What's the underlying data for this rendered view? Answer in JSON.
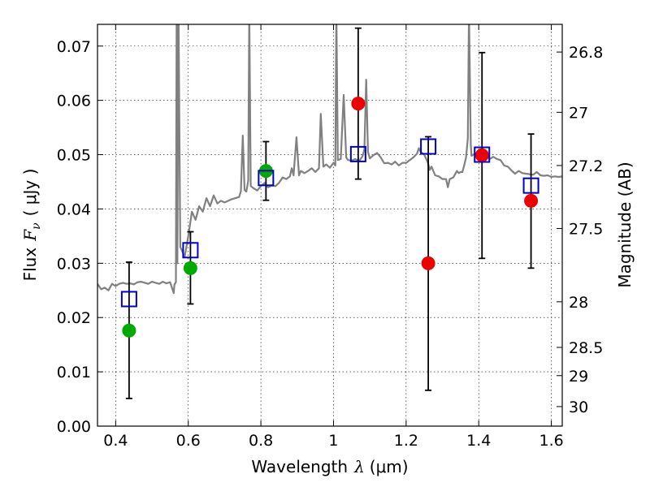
{
  "chart_data": {
    "type": "scatter",
    "xlabel": {
      "prefix": "Wavelength",
      "symbol": "λ",
      "unit": "(μm)"
    },
    "ylabel": {
      "prefix": "Flux",
      "symbol": "F",
      "subscript": "ν",
      "unit": "( μJy )"
    },
    "y2label": "Magnitude (AB)",
    "xlim": [
      0.35,
      1.63
    ],
    "ylim": [
      0.0,
      0.074
    ],
    "grid": true,
    "x_ticks": [
      {
        "value": 0.4,
        "label": "0.4"
      },
      {
        "value": 0.6,
        "label": "0.6"
      },
      {
        "value": 0.8,
        "label": "0.8"
      },
      {
        "value": 1.0,
        "label": "1"
      },
      {
        "value": 1.2,
        "label": "1.2"
      },
      {
        "value": 1.4,
        "label": "1.4"
      },
      {
        "value": 1.6,
        "label": "1.6"
      }
    ],
    "y_ticks": [
      {
        "value": 0.0,
        "label": "0.00"
      },
      {
        "value": 0.01,
        "label": "0.01"
      },
      {
        "value": 0.02,
        "label": "0.02"
      },
      {
        "value": 0.03,
        "label": "0.03"
      },
      {
        "value": 0.04,
        "label": "0.04"
      },
      {
        "value": 0.05,
        "label": "0.05"
      },
      {
        "value": 0.06,
        "label": "0.06"
      },
      {
        "value": 0.07,
        "label": "0.07"
      }
    ],
    "y2_ticks": [
      {
        "flux": 0.0689,
        "label": "26.8"
      },
      {
        "flux": 0.0578,
        "label": "27"
      },
      {
        "flux": 0.048,
        "label": "27.2"
      },
      {
        "flux": 0.0364,
        "label": "27.5"
      },
      {
        "flux": 0.0229,
        "label": "28"
      },
      {
        "flux": 0.0145,
        "label": "28.5"
      },
      {
        "flux": 0.0093,
        "label": "29"
      },
      {
        "flux": 0.0036,
        "label": "30"
      }
    ],
    "colors": {
      "spectrum": "#808080",
      "model": "#0000cc",
      "detected": "#00aa00",
      "upper": "#ee0000",
      "errorbar": "#000000"
    },
    "spectrum": [
      [
        0.35,
        0.0262
      ],
      [
        0.36,
        0.0252
      ],
      [
        0.37,
        0.0255
      ],
      [
        0.38,
        0.025
      ],
      [
        0.39,
        0.0262
      ],
      [
        0.4,
        0.0258
      ],
      [
        0.41,
        0.0262
      ],
      [
        0.42,
        0.0264
      ],
      [
        0.43,
        0.0262
      ],
      [
        0.44,
        0.0263
      ],
      [
        0.45,
        0.0261
      ],
      [
        0.46,
        0.0265
      ],
      [
        0.47,
        0.0266
      ],
      [
        0.48,
        0.0264
      ],
      [
        0.49,
        0.0262
      ],
      [
        0.5,
        0.0266
      ],
      [
        0.51,
        0.0264
      ],
      [
        0.52,
        0.0262
      ],
      [
        0.53,
        0.0266
      ],
      [
        0.54,
        0.0263
      ],
      [
        0.55,
        0.0265
      ],
      [
        0.555,
        0.0255
      ],
      [
        0.56,
        0.0245
      ],
      [
        0.562,
        0.0261
      ],
      [
        0.566,
        0.0265
      ],
      [
        0.568,
        0.0765
      ],
      [
        0.57,
        0.03
      ],
      [
        0.573,
        0.0769
      ],
      [
        0.578,
        0.033
      ],
      [
        0.59,
        0.0312
      ],
      [
        0.6,
        0.035
      ],
      [
        0.61,
        0.0395
      ],
      [
        0.62,
        0.038
      ],
      [
        0.63,
        0.0405
      ],
      [
        0.64,
        0.0395
      ],
      [
        0.65,
        0.042
      ],
      [
        0.66,
        0.0405
      ],
      [
        0.67,
        0.0425
      ],
      [
        0.68,
        0.041
      ],
      [
        0.69,
        0.0415
      ],
      [
        0.7,
        0.0412
      ],
      [
        0.71,
        0.0415
      ],
      [
        0.72,
        0.0418
      ],
      [
        0.73,
        0.042
      ],
      [
        0.74,
        0.0422
      ],
      [
        0.745,
        0.0433
      ],
      [
        0.75,
        0.0535
      ],
      [
        0.755,
        0.0435
      ],
      [
        0.76,
        0.0432
      ],
      [
        0.765,
        0.0452
      ],
      [
        0.768,
        0.0765
      ],
      [
        0.772,
        0.0442
      ],
      [
        0.78,
        0.0438
      ],
      [
        0.79,
        0.0434
      ],
      [
        0.8,
        0.0442
      ],
      [
        0.81,
        0.0448
      ],
      [
        0.82,
        0.044
      ],
      [
        0.83,
        0.0443
      ],
      [
        0.84,
        0.0442
      ],
      [
        0.85,
        0.0448
      ],
      [
        0.86,
        0.0458
      ],
      [
        0.87,
        0.0455
      ],
      [
        0.88,
        0.046
      ],
      [
        0.885,
        0.0475
      ],
      [
        0.89,
        0.0462
      ],
      [
        0.898,
        0.0532
      ],
      [
        0.905,
        0.0462
      ],
      [
        0.91,
        0.047
      ],
      [
        0.92,
        0.0466
      ],
      [
        0.93,
        0.047
      ],
      [
        0.94,
        0.0475
      ],
      [
        0.95,
        0.0468
      ],
      [
        0.96,
        0.0475
      ],
      [
        0.965,
        0.0575
      ],
      [
        0.972,
        0.0478
      ],
      [
        0.98,
        0.0482
      ],
      [
        0.99,
        0.0476
      ],
      [
        1.0,
        0.0485
      ],
      [
        1.005,
        0.048
      ],
      [
        1.008,
        0.0765
      ],
      [
        1.012,
        0.049
      ],
      [
        1.02,
        0.0492
      ],
      [
        1.028,
        0.061
      ],
      [
        1.035,
        0.0495
      ],
      [
        1.04,
        0.049
      ],
      [
        1.05,
        0.0489
      ],
      [
        1.06,
        0.0492
      ],
      [
        1.07,
        0.0488
      ],
      [
        1.08,
        0.0497
      ],
      [
        1.085,
        0.051
      ],
      [
        1.09,
        0.0638
      ],
      [
        1.095,
        0.0505
      ],
      [
        1.1,
        0.0493
      ],
      [
        1.11,
        0.0499
      ],
      [
        1.12,
        0.0503
      ],
      [
        1.13,
        0.0495
      ],
      [
        1.14,
        0.0484
      ],
      [
        1.15,
        0.0485
      ],
      [
        1.16,
        0.0482
      ],
      [
        1.17,
        0.0487
      ],
      [
        1.18,
        0.048
      ],
      [
        1.19,
        0.0485
      ],
      [
        1.2,
        0.0485
      ],
      [
        1.21,
        0.049
      ],
      [
        1.22,
        0.0495
      ],
      [
        1.23,
        0.0502
      ],
      [
        1.235,
        0.0512
      ],
      [
        1.24,
        0.0505
      ],
      [
        1.25,
        0.05
      ],
      [
        1.26,
        0.0485
      ],
      [
        1.265,
        0.0472
      ],
      [
        1.27,
        0.0478
      ],
      [
        1.28,
        0.0462
      ],
      [
        1.29,
        0.046
      ],
      [
        1.3,
        0.0455
      ],
      [
        1.31,
        0.0455
      ],
      [
        1.315,
        0.044
      ],
      [
        1.32,
        0.0455
      ],
      [
        1.33,
        0.0458
      ],
      [
        1.34,
        0.047
      ],
      [
        1.345,
        0.0466
      ],
      [
        1.35,
        0.0468
      ],
      [
        1.355,
        0.0468
      ],
      [
        1.36,
        0.048
      ],
      [
        1.365,
        0.0495
      ],
      [
        1.37,
        0.053
      ],
      [
        1.373,
        0.0765
      ],
      [
        1.378,
        0.052
      ],
      [
        1.38,
        0.0498
      ],
      [
        1.39,
        0.0502
      ],
      [
        1.4,
        0.0505
      ],
      [
        1.41,
        0.0512
      ],
      [
        1.42,
        0.05
      ],
      [
        1.43,
        0.0492
      ],
      [
        1.44,
        0.0496
      ],
      [
        1.45,
        0.0492
      ],
      [
        1.46,
        0.049
      ],
      [
        1.47,
        0.048
      ],
      [
        1.48,
        0.0478
      ],
      [
        1.49,
        0.0471
      ],
      [
        1.5,
        0.0465
      ],
      [
        1.51,
        0.047
      ],
      [
        1.52,
        0.0466
      ],
      [
        1.53,
        0.0465
      ],
      [
        1.54,
        0.0464
      ],
      [
        1.55,
        0.0463
      ],
      [
        1.56,
        0.0468
      ],
      [
        1.57,
        0.0462
      ],
      [
        1.58,
        0.0461
      ],
      [
        1.59,
        0.0462
      ],
      [
        1.6,
        0.0459
      ],
      [
        1.61,
        0.046
      ],
      [
        1.62,
        0.0459
      ],
      [
        1.63,
        0.046
      ]
    ],
    "series": [
      {
        "marker": "circle",
        "color": "detected",
        "points": [
          {
            "x": 0.437,
            "y": 0.0176
          },
          {
            "x": 0.606,
            "y": 0.0291
          },
          {
            "x": 0.814,
            "y": 0.047
          }
        ]
      },
      {
        "marker": "circle",
        "color": "upper",
        "points": [
          {
            "x": 1.068,
            "y": 0.0594
          },
          {
            "x": 1.261,
            "y": 0.03
          },
          {
            "x": 1.409,
            "y": 0.0499
          },
          {
            "x": 1.544,
            "y": 0.0415
          }
        ]
      },
      {
        "marker": "open-square",
        "color": "model",
        "points": [
          {
            "x": 0.437,
            "y": 0.0234
          },
          {
            "x": 0.606,
            "y": 0.0324
          },
          {
            "x": 0.814,
            "y": 0.0457
          },
          {
            "x": 1.068,
            "y": 0.0501
          },
          {
            "x": 1.261,
            "y": 0.0515
          },
          {
            "x": 1.409,
            "y": 0.05
          },
          {
            "x": 1.544,
            "y": 0.0443
          }
        ]
      }
    ],
    "error_bars": [
      {
        "x": 0.437,
        "low": 0.0051,
        "high": 0.0302
      },
      {
        "x": 0.606,
        "low": 0.0225,
        "high": 0.0358
      },
      {
        "x": 0.814,
        "low": 0.0416,
        "high": 0.0524
      },
      {
        "x": 1.068,
        "low": 0.0455,
        "high": 0.0733
      },
      {
        "x": 1.261,
        "low": 0.0066,
        "high": 0.0533
      },
      {
        "x": 1.409,
        "low": 0.0309,
        "high": 0.0688
      },
      {
        "x": 1.544,
        "low": 0.0291,
        "high": 0.0538
      }
    ]
  }
}
